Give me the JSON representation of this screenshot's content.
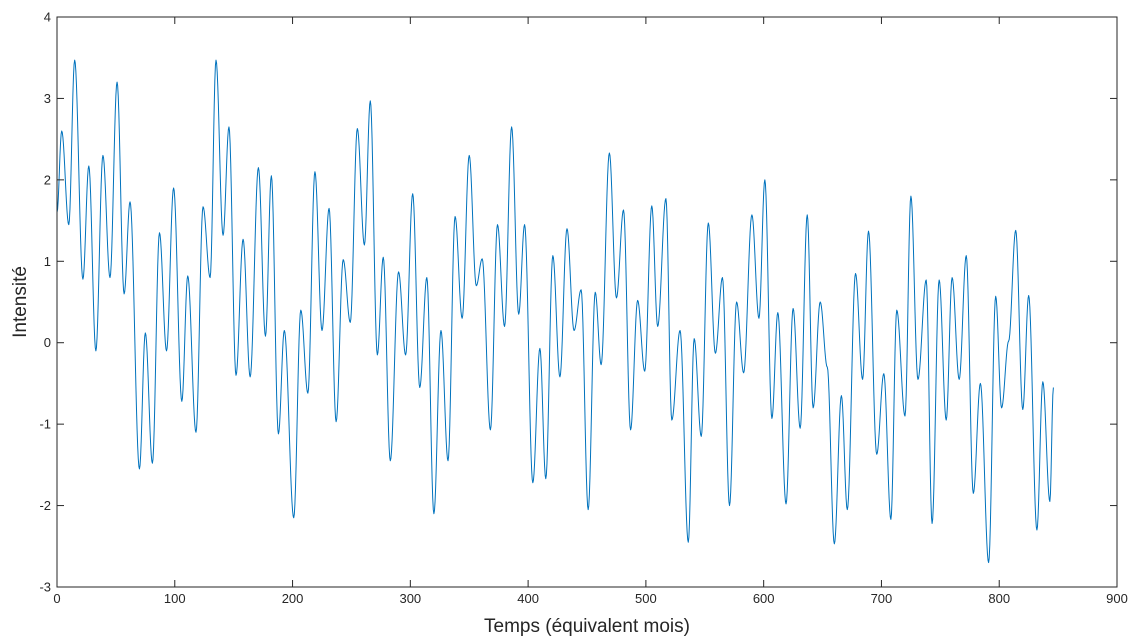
{
  "chart_data": {
    "type": "line",
    "title": "",
    "xlabel": "Temps (équivalent mois)",
    "ylabel": "Intensité",
    "xlim": [
      0,
      900
    ],
    "ylim": [
      -3,
      4
    ],
    "xticks": [
      0,
      100,
      200,
      300,
      400,
      500,
      600,
      700,
      800,
      900
    ],
    "yticks": [
      -3,
      -2,
      -1,
      0,
      1,
      2,
      3,
      4
    ],
    "grid": false,
    "legend": "none",
    "series": [
      {
        "color": "#0072bd",
        "extrema": [
          [
            0,
            1.6
          ],
          [
            4,
            2.6
          ],
          [
            10,
            1.45
          ],
          [
            15,
            3.47
          ],
          [
            22,
            0.78
          ],
          [
            27,
            2.17
          ],
          [
            33,
            -0.1
          ],
          [
            39,
            2.3
          ],
          [
            45,
            0.8
          ],
          [
            51,
            3.2
          ],
          [
            57,
            0.6
          ],
          [
            62,
            1.73
          ],
          [
            70,
            -1.55
          ],
          [
            75,
            0.12
          ],
          [
            81,
            -1.48
          ],
          [
            87,
            1.35
          ],
          [
            93,
            -0.1
          ],
          [
            99,
            1.9
          ],
          [
            106,
            -0.72
          ],
          [
            111,
            0.82
          ],
          [
            118,
            -1.1
          ],
          [
            124,
            1.67
          ],
          [
            130,
            0.8
          ],
          [
            135,
            3.47
          ],
          [
            141,
            1.32
          ],
          [
            146,
            2.65
          ],
          [
            152,
            -0.4
          ],
          [
            158,
            1.27
          ],
          [
            164,
            -0.42
          ],
          [
            171,
            2.15
          ],
          [
            177,
            0.08
          ],
          [
            182,
            2.05
          ],
          [
            188,
            -1.12
          ],
          [
            193,
            0.15
          ],
          [
            201,
            -2.15
          ],
          [
            207,
            0.4
          ],
          [
            213,
            -0.62
          ],
          [
            219,
            2.1
          ],
          [
            225,
            0.15
          ],
          [
            231,
            1.65
          ],
          [
            237,
            -0.97
          ],
          [
            243,
            1.02
          ],
          [
            249,
            0.25
          ],
          [
            255,
            2.63
          ],
          [
            261,
            1.2
          ],
          [
            266,
            2.97
          ],
          [
            272,
            -0.15
          ],
          [
            277,
            1.05
          ],
          [
            283,
            -1.45
          ],
          [
            290,
            0.87
          ],
          [
            296,
            -0.15
          ],
          [
            302,
            1.83
          ],
          [
            308,
            -0.55
          ],
          [
            314,
            0.8
          ],
          [
            320,
            -2.1
          ],
          [
            326,
            0.15
          ],
          [
            332,
            -1.45
          ],
          [
            338,
            1.55
          ],
          [
            344,
            0.3
          ],
          [
            350,
            2.3
          ],
          [
            356,
            0.7
          ],
          [
            361,
            1.03
          ],
          [
            368,
            -1.07
          ],
          [
            374,
            1.45
          ],
          [
            380,
            0.2
          ],
          [
            386,
            2.65
          ],
          [
            392,
            0.35
          ],
          [
            397,
            1.45
          ],
          [
            404,
            -1.72
          ],
          [
            410,
            -0.07
          ],
          [
            415,
            -1.67
          ],
          [
            421,
            1.07
          ],
          [
            427,
            -0.42
          ],
          [
            433,
            1.4
          ],
          [
            439,
            0.15
          ],
          [
            445,
            0.65
          ],
          [
            451,
            -2.05
          ],
          [
            457,
            0.62
          ],
          [
            462,
            -0.27
          ],
          [
            469,
            2.33
          ],
          [
            475,
            0.55
          ],
          [
            481,
            1.63
          ],
          [
            487,
            -1.07
          ],
          [
            493,
            0.52
          ],
          [
            499,
            -0.35
          ],
          [
            505,
            1.68
          ],
          [
            510,
            0.2
          ],
          [
            517,
            1.77
          ],
          [
            522,
            -0.95
          ],
          [
            529,
            0.15
          ],
          [
            536,
            -2.45
          ],
          [
            541,
            0.05
          ],
          [
            547,
            -1.15
          ],
          [
            553,
            1.47
          ],
          [
            559,
            -0.13
          ],
          [
            565,
            0.8
          ],
          [
            571,
            -2.0
          ],
          [
            577,
            0.5
          ],
          [
            583,
            -0.37
          ],
          [
            590,
            1.57
          ],
          [
            596,
            0.3
          ],
          [
            601,
            2.0
          ],
          [
            607,
            -0.93
          ],
          [
            612,
            0.37
          ],
          [
            619,
            -1.98
          ],
          [
            625,
            0.42
          ],
          [
            631,
            -1.05
          ],
          [
            637,
            1.57
          ],
          [
            642,
            -0.8
          ],
          [
            648,
            0.5
          ],
          [
            654,
            -0.3
          ],
          [
            660,
            -2.47
          ],
          [
            666,
            -0.65
          ],
          [
            671,
            -2.05
          ],
          [
            678,
            0.85
          ],
          [
            684,
            -0.45
          ],
          [
            689,
            1.37
          ],
          [
            696,
            -1.37
          ],
          [
            702,
            -0.38
          ],
          [
            708,
            -2.17
          ],
          [
            713,
            0.4
          ],
          [
            720,
            -0.9
          ],
          [
            725,
            1.8
          ],
          [
            731,
            -0.45
          ],
          [
            738,
            0.77
          ],
          [
            743,
            -2.22
          ],
          [
            749,
            0.77
          ],
          [
            755,
            -0.95
          ],
          [
            760,
            0.8
          ],
          [
            766,
            -0.45
          ],
          [
            772,
            1.07
          ],
          [
            778,
            -1.85
          ],
          [
            784,
            -0.5
          ],
          [
            791,
            -2.7
          ],
          [
            797,
            0.57
          ],
          [
            802,
            -0.8
          ],
          [
            808,
            0.02
          ],
          [
            814,
            1.38
          ],
          [
            820,
            -0.82
          ],
          [
            825,
            0.58
          ],
          [
            832,
            -2.3
          ],
          [
            837,
            -0.48
          ],
          [
            843,
            -1.95
          ],
          [
            846,
            -0.55
          ]
        ]
      }
    ]
  }
}
